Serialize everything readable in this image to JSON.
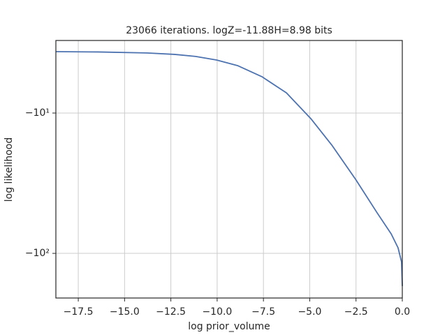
{
  "chart_data": {
    "type": "line",
    "title": "23066 iterations. logZ=-11.88H=8.98 bits",
    "x_label": "log prior_volume",
    "y_label": "log likelihood",
    "x": [
      -18.71,
      -16.44,
      -13.8,
      -12.3,
      -11.16,
      -10.03,
      -8.9,
      -7.58,
      -6.26,
      -4.94,
      -3.81,
      -2.49,
      -1.36,
      -0.6,
      -0.23,
      -0.04,
      0
    ],
    "series": [
      {
        "name": "log likelihood",
        "color": "#4c72b0",
        "values": [
          -3.65,
          -3.67,
          -3.73,
          -3.82,
          -3.95,
          -4.19,
          -4.59,
          -5.51,
          -7.18,
          -10.96,
          -16.9,
          -30.1,
          -51.4,
          -72.6,
          -91.2,
          -115,
          -171
        ]
      }
    ],
    "xlim": [
      -18.71,
      0
    ],
    "ylim": [
      -208,
      -3.04
    ],
    "yscale": "log",
    "grid": true,
    "xticks": [
      {
        "value": -17.5,
        "label": "−17.5"
      },
      {
        "value": -15,
        "label": "−15.0"
      },
      {
        "value": -12.5,
        "label": "−12.5"
      },
      {
        "value": -10,
        "label": "−10.0"
      },
      {
        "value": -7.5,
        "label": "−7.5"
      },
      {
        "value": -5,
        "label": "−5.0"
      },
      {
        "value": -2.5,
        "label": "−2.5"
      },
      {
        "value": 0,
        "label": "0.0"
      }
    ],
    "yticks": [
      {
        "value": -10,
        "label": "−10¹"
      },
      {
        "value": -100,
        "label": "−10²"
      }
    ]
  }
}
